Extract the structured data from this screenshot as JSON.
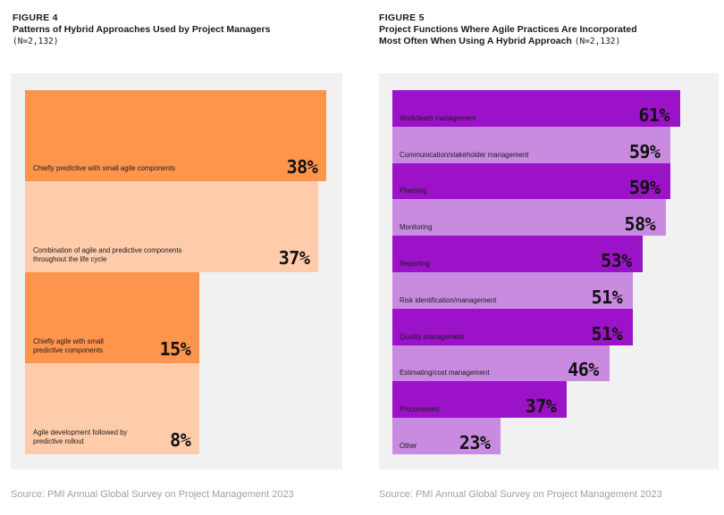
{
  "figure4": {
    "label": "FIGURE 4",
    "title": "Patterns of Hybrid Approaches Used by Project Managers",
    "n": "(N=2,132)",
    "source": "Source: PMI Annual Global Survey on Project Management 2023",
    "chart_data": {
      "type": "bar",
      "orientation": "horizontal",
      "categories": [
        "Chiefly predictive with small agile components",
        "Combination of agile and predictive components throughout the life cycle",
        "Chiefly agile with small predictive components",
        "Agile development followed by predictive rollout"
      ],
      "label_lines": [
        [
          "Chiefly predictive with small agile components"
        ],
        [
          "Combination of agile and predictive components",
          "throughout the life cycle"
        ],
        [
          "Chiefly agile with small",
          "predictive components"
        ],
        [
          "Agile development followed by",
          "predictive rollout"
        ]
      ],
      "values": [
        38,
        37,
        15,
        8
      ],
      "value_labels": [
        "38%",
        "37%",
        "15%",
        "8%"
      ],
      "unit": "%",
      "colors": [
        "#ff944d",
        "#ffccab",
        "#ff944d",
        "#ffccab"
      ]
    }
  },
  "figure5": {
    "label": "FIGURE 5",
    "title_lines": [
      "Project Functions Where Agile Practices Are Incorporated",
      "Most Often When Using A Hybrid Approach"
    ],
    "n": "(N=2,132)",
    "source": "Source: PMI Annual Global Survey on Project Management 2023",
    "chart_data": {
      "type": "bar",
      "orientation": "horizontal",
      "categories": [
        "Work/team management",
        "Communication/stakeholder management",
        "Planning",
        "Monitoring",
        "Reporting",
        "Risk identification/management",
        "Quality management",
        "Estimating/cost management",
        "Procurement",
        "Other"
      ],
      "values": [
        61,
        59,
        59,
        58,
        53,
        51,
        51,
        46,
        37,
        23
      ],
      "value_labels": [
        "61%",
        "59%",
        "59%",
        "58%",
        "53%",
        "51%",
        "51%",
        "46%",
        "37%",
        "23%"
      ],
      "unit": "%",
      "colors": [
        "#9b12c8",
        "#c98be0"
      ]
    }
  }
}
